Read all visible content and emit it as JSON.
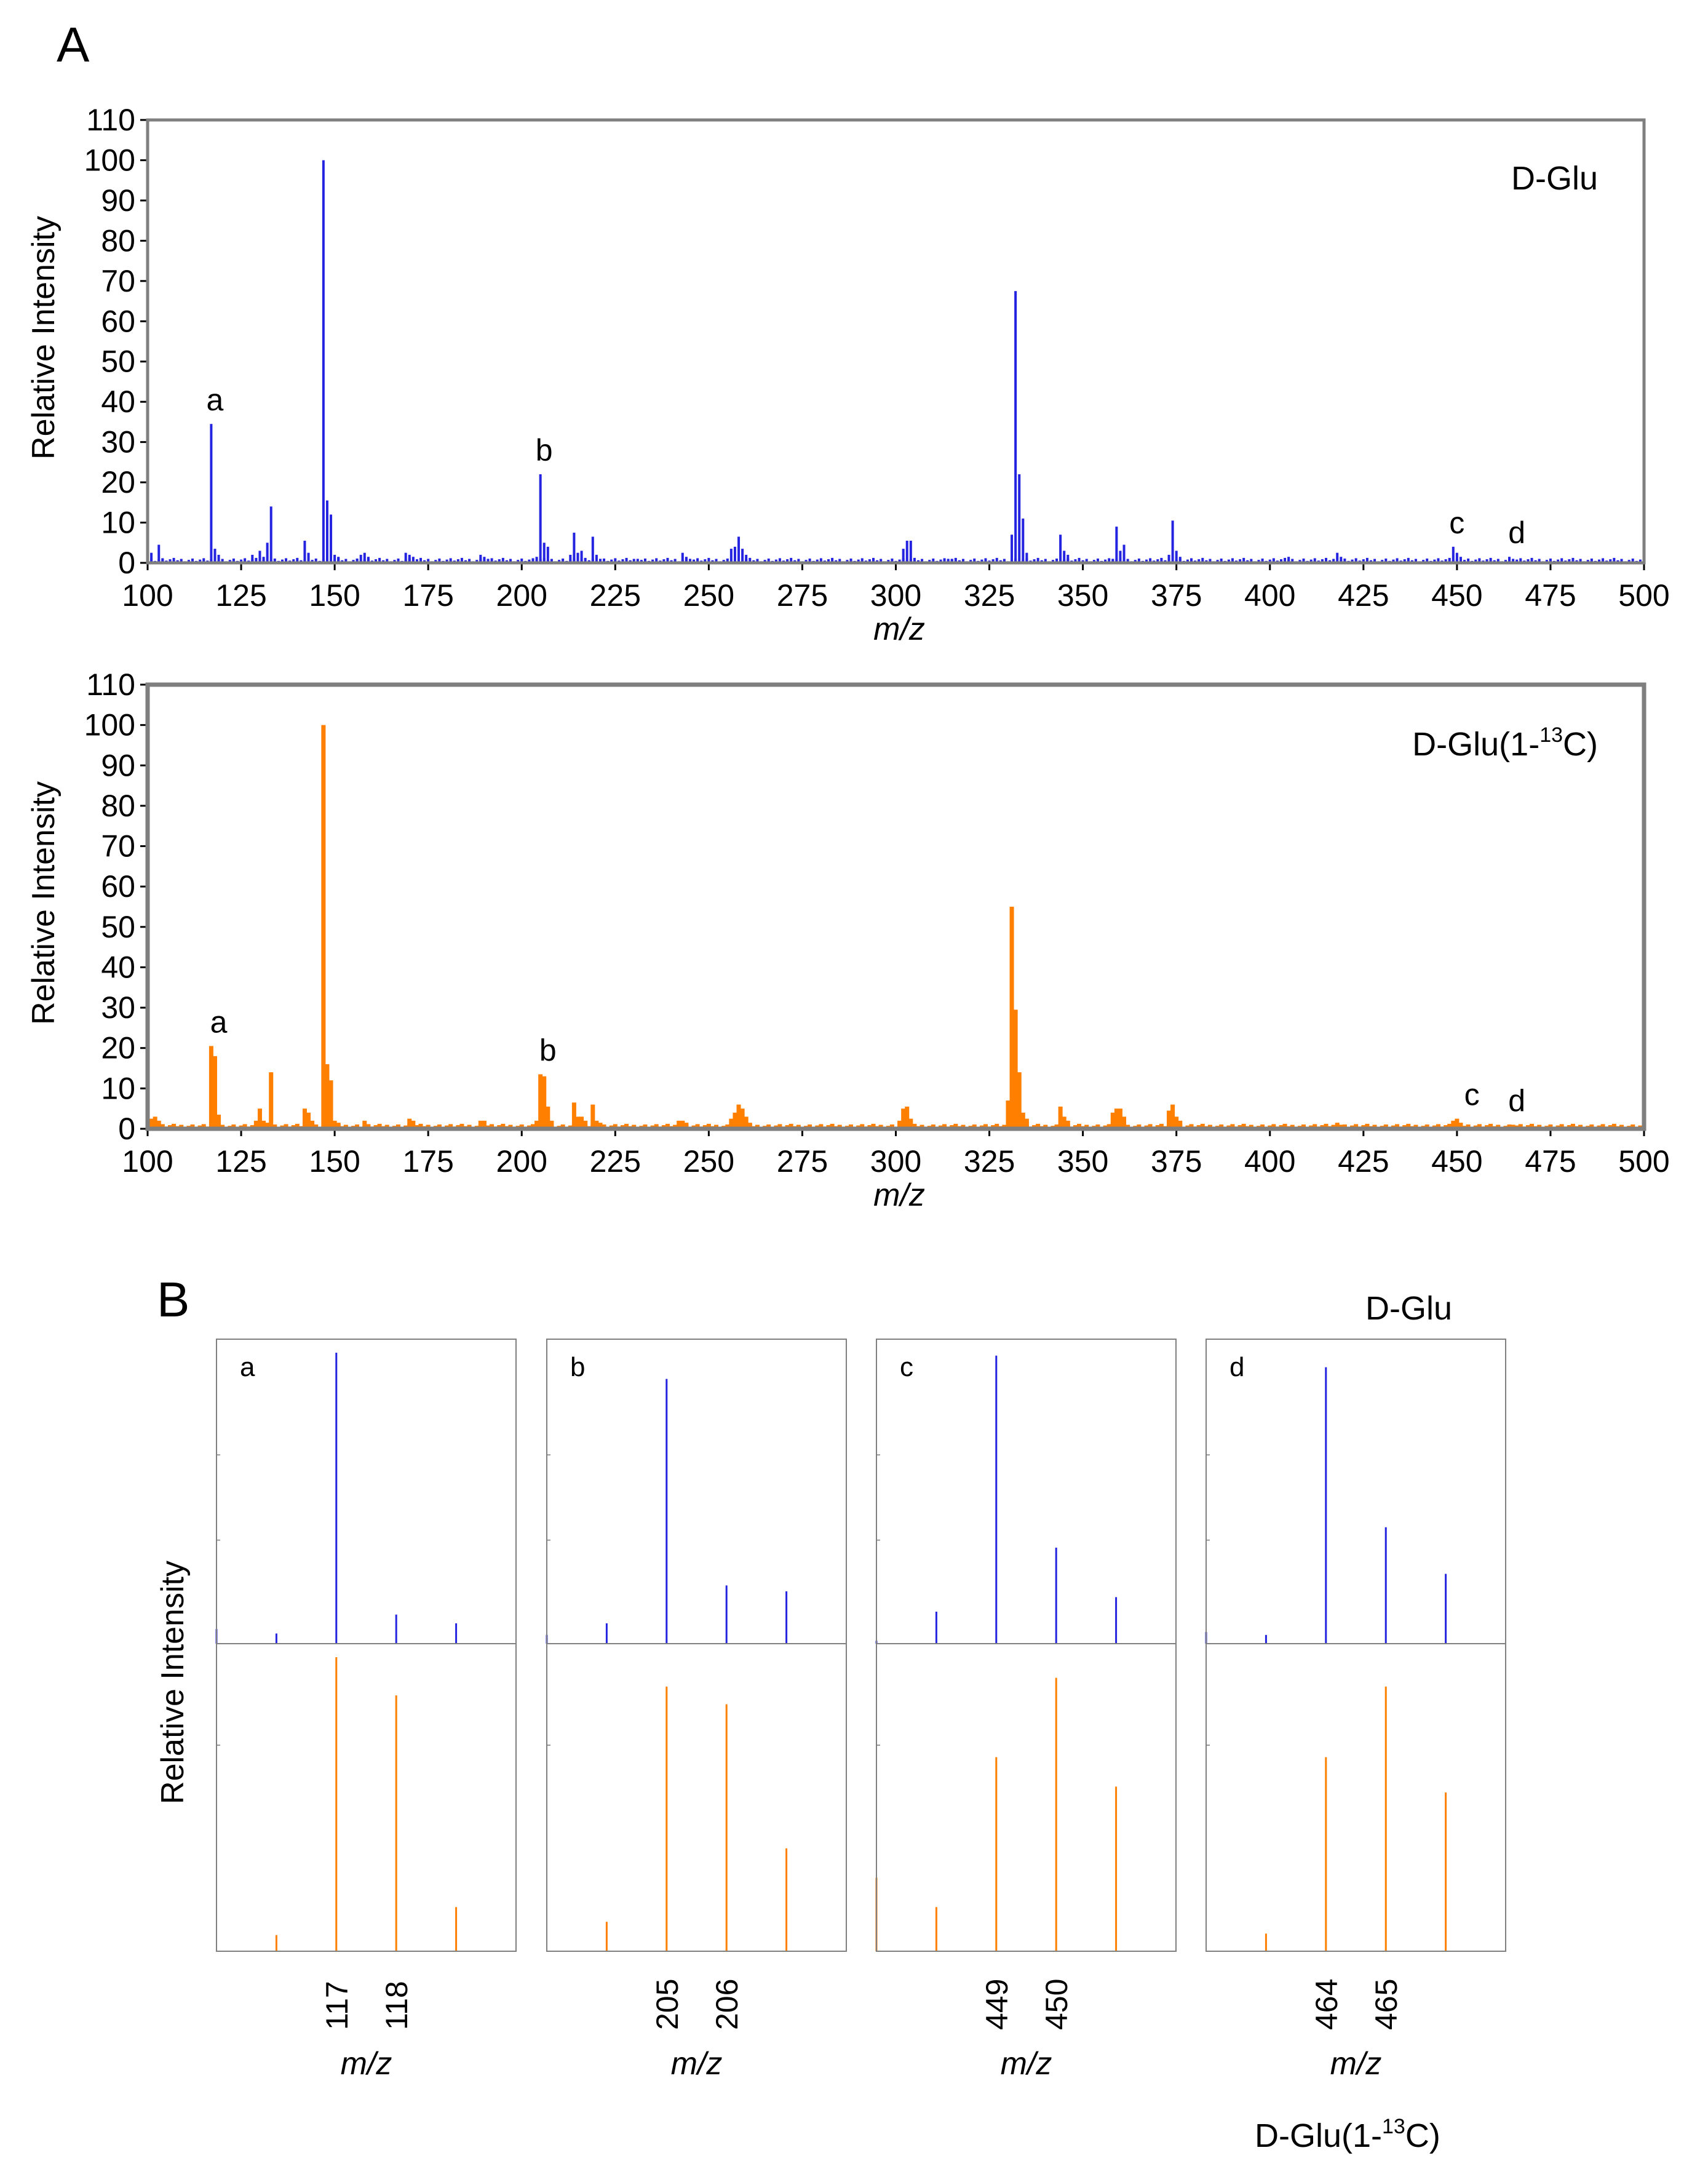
{
  "panel_a": {
    "label": "A",
    "xlabel": "m/z",
    "ylabel": "Relative Intensity",
    "xticks": [
      100,
      125,
      150,
      175,
      200,
      225,
      250,
      275,
      300,
      325,
      350,
      375,
      400,
      425,
      450,
      475,
      500
    ],
    "yticks": [
      0,
      10,
      20,
      30,
      40,
      50,
      60,
      70,
      80,
      90,
      100,
      110
    ],
    "colors": {
      "glu": "#2424e0",
      "c13": "#ff7f00",
      "frame": "#7f7f7f"
    }
  },
  "panel_b": {
    "label": "B",
    "ylabel": "Relative Intensity",
    "xlabel": "m/z",
    "top_label": "D-Glu",
    "bottom_label_main": "D-Glu(1-",
    "bottom_label_sup": "13",
    "bottom_label_end": "C)"
  },
  "chart_data": [
    {
      "type": "bar",
      "id": "A-top",
      "title": "D-Glu",
      "xlabel": "m/z",
      "ylabel": "Relative Intensity",
      "xlim": [
        100,
        500
      ],
      "ylim": [
        0,
        110
      ],
      "color": "#2424e0",
      "annotations": [
        {
          "text": "a",
          "x": 117,
          "y": 34.5
        },
        {
          "text": "b",
          "x": 205,
          "y": 22
        },
        {
          "text": "c",
          "x": 449,
          "y": 4
        },
        {
          "text": "d",
          "x": 465,
          "y": 1.5
        }
      ],
      "x": [
        101,
        103,
        104,
        117,
        118,
        119,
        128,
        130,
        131,
        132,
        133,
        142,
        143,
        147,
        148,
        149,
        150,
        151,
        156,
        157,
        158,
        159,
        169,
        170,
        171,
        189,
        190,
        191,
        204,
        205,
        206,
        207,
        213,
        214,
        215,
        216,
        219,
        220,
        221,
        231,
        243,
        244,
        245,
        256,
        257,
        258,
        259,
        260,
        302,
        303,
        304,
        314,
        315,
        331,
        332,
        333,
        334,
        335,
        344,
        345,
        346,
        358,
        359,
        360,
        361,
        373,
        374,
        375,
        376,
        405,
        418,
        419,
        449,
        450,
        451,
        464,
        465
      ],
      "values": [
        2.5,
        4.5,
        1,
        34.5,
        3.5,
        2,
        2,
        3,
        1.5,
        5,
        14,
        5.5,
        2.5,
        100,
        15.5,
        12,
        2,
        1.5,
        1,
        2,
        2.5,
        1.5,
        2.5,
        2,
        1.5,
        2,
        1.5,
        1,
        1.5,
        22,
        5,
        4,
        2,
        7.5,
        2.5,
        3,
        6.5,
        2,
        1,
        1,
        2.5,
        1.5,
        1,
        3.5,
        4,
        6.5,
        3.5,
        2,
        3.5,
        5.5,
        5.5,
        1,
        1,
        7,
        67.5,
        22,
        11,
        2.5,
        7,
        3,
        2,
        1,
        9,
        3,
        4.5,
        2,
        10.5,
        3,
        1.5,
        1.5,
        2.5,
        1.5,
        4,
        2.5,
        1.5,
        1.5,
        1
      ]
    },
    {
      "type": "bar",
      "id": "A-bottom",
      "title": "D-Glu(1-13C)",
      "xlabel": "m/z",
      "ylabel": "Relative Intensity",
      "xlim": [
        100,
        500
      ],
      "ylim": [
        0,
        110
      ],
      "color": "#ff7f00",
      "annotations": [
        {
          "text": "a",
          "x": 118,
          "y": 20.5
        },
        {
          "text": "b",
          "x": 206,
          "y": 13.5
        },
        {
          "text": "c",
          "x": 453,
          "y": 2.5
        },
        {
          "text": "d",
          "x": 465,
          "y": 1
        }
      ],
      "x": [
        101,
        102,
        103,
        117,
        118,
        119,
        129,
        130,
        131,
        132,
        133,
        142,
        143,
        144,
        147,
        148,
        149,
        150,
        151,
        158,
        170,
        171,
        189,
        190,
        204,
        205,
        206,
        207,
        208,
        214,
        215,
        216,
        217,
        219,
        220,
        221,
        242,
        243,
        244,
        256,
        257,
        258,
        259,
        260,
        261,
        301,
        302,
        303,
        304,
        330,
        331,
        332,
        333,
        334,
        335,
        344,
        345,
        346,
        358,
        359,
        360,
        361,
        373,
        374,
        375,
        376,
        418,
        419,
        448,
        449,
        450,
        451,
        464,
        465
      ],
      "values": [
        2.5,
        3,
        2,
        20.5,
        18,
        3.5,
        2,
        5,
        2,
        1.5,
        14,
        5,
        4,
        2,
        100,
        16,
        12,
        2,
        1.5,
        2,
        2.5,
        2,
        2,
        2,
        2,
        13.5,
        13,
        5.5,
        2,
        6.5,
        3,
        3,
        2,
        6,
        2,
        1.5,
        2,
        2,
        1.5,
        2.5,
        4,
        6,
        5,
        3,
        1.5,
        2,
        5,
        5.5,
        2.5,
        7,
        55,
        29.5,
        14,
        4,
        2.5,
        5.5,
        3,
        2,
        4,
        5,
        5,
        3,
        4.5,
        6,
        3,
        2,
        1.5,
        1,
        1,
        2,
        2.5,
        1.5,
        1,
        1
      ]
    },
    {
      "type": "bar",
      "id": "B-a",
      "panel_letter": "a",
      "xticks": [
        "117",
        "118"
      ],
      "x": [
        115,
        116,
        117,
        118,
        119
      ],
      "top_values": [
        5,
        3.5,
        100,
        10,
        7
      ],
      "bottom_values": [
        0,
        5.5,
        100,
        87,
        15
      ],
      "xlim": [
        115,
        120
      ]
    },
    {
      "type": "bar",
      "id": "B-b",
      "panel_letter": "b",
      "xticks": [
        "205",
        "206"
      ],
      "x": [
        203,
        204,
        205,
        206,
        207
      ],
      "top_values": [
        3,
        7,
        91,
        20,
        18
      ],
      "bottom_values": [
        0,
        10,
        90,
        84,
        35
      ],
      "xlim": [
        203,
        208
      ]
    },
    {
      "type": "bar",
      "id": "B-c",
      "panel_letter": "c",
      "xticks": [
        "449",
        "450"
      ],
      "x": [
        447,
        448,
        449,
        450,
        451
      ],
      "top_values": [
        1,
        11,
        99,
        33,
        16
      ],
      "bottom_values": [
        25,
        15,
        66,
        93,
        56
      ],
      "xlim": [
        447,
        452
      ]
    },
    {
      "type": "bar",
      "id": "B-d",
      "panel_letter": "d",
      "xticks": [
        "464",
        "465"
      ],
      "x": [
        462,
        463,
        464,
        465,
        466
      ],
      "top_values": [
        4,
        3,
        95,
        40,
        24
      ],
      "bottom_values": [
        0,
        6,
        66,
        90,
        54
      ],
      "xlim": [
        462,
        467
      ]
    }
  ]
}
